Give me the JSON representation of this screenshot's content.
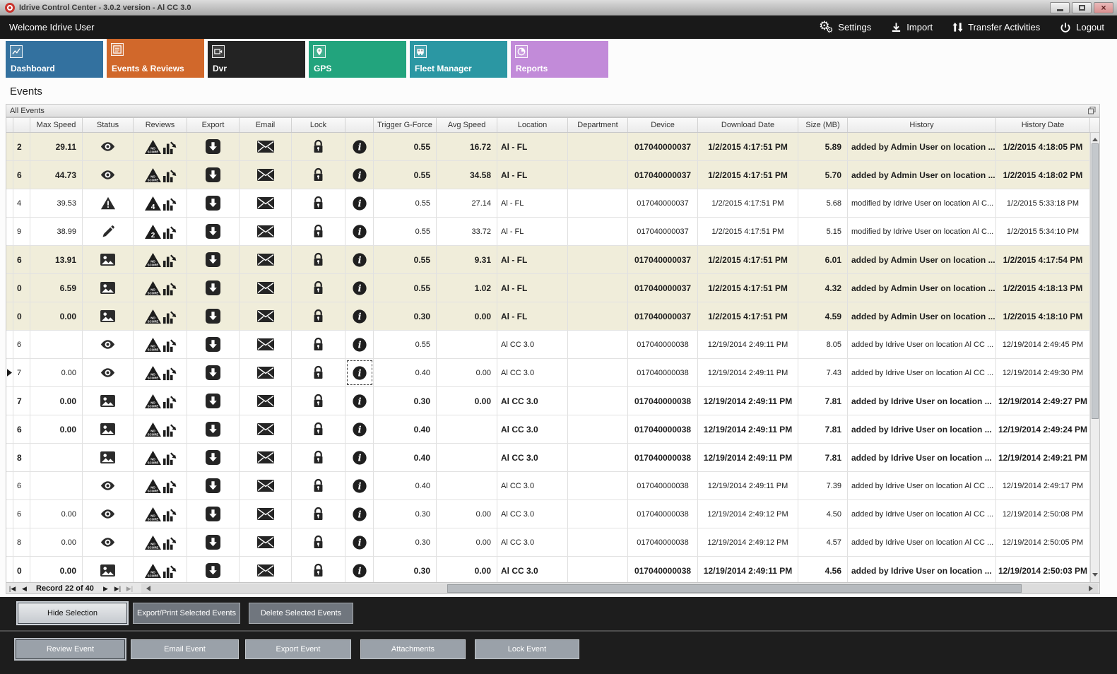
{
  "window": {
    "title": "Idrive Control Center - 3.0.2 version - Al CC 3.0"
  },
  "toolbar": {
    "welcome": "Welcome Idrive User",
    "actions": [
      {
        "label": "Settings",
        "icon": "gear-icon"
      },
      {
        "label": "Import",
        "icon": "download-icon"
      },
      {
        "label": "Transfer Activities",
        "icon": "transfer-arrows-icon"
      },
      {
        "label": "Logout",
        "icon": "power-icon"
      }
    ]
  },
  "icons": {
    "gear": "⚙",
    "close_glyph": "×"
  },
  "tabs": [
    {
      "label": "Dashboard",
      "color": "#33719f",
      "active": false
    },
    {
      "label": "Events & Reviews",
      "color": "#d1682b",
      "active": true
    },
    {
      "label": "Dvr",
      "color": "#232323",
      "active": false
    },
    {
      "label": "GPS",
      "color": "#22a47d",
      "active": false
    },
    {
      "label": "Fleet Manager",
      "color": "#2b97a3",
      "active": false
    },
    {
      "label": "Reports",
      "color": "#c28bd9",
      "active": false
    }
  ],
  "page": {
    "title": "Events",
    "panel_title": "All Events"
  },
  "colors": {
    "highlight_row": "#f0edda",
    "topbar_bg": "#191919"
  },
  "table": {
    "columns": [
      "",
      "",
      "Max Speed",
      "Status",
      "Reviews",
      "Export",
      "Email",
      "Lock",
      "",
      "Trigger G-Force",
      "Avg Speed",
      "Location",
      "Department",
      "Device",
      "Download Date",
      "Size (MB)",
      "History",
      "History Date"
    ],
    "rows": [
      {
        "id": "2",
        "max": "29.11",
        "status": "eye",
        "review": "NO SCORE",
        "trigger": "0.55",
        "avg": "16.72",
        "loc": "Al - FL",
        "dept": "",
        "device": "017040000037",
        "dl": "1/2/2015 4:17:51 PM",
        "size": "5.89",
        "hist": "added by Admin User on location ...",
        "hd": "1/2/2015 4:18:05 PM",
        "hl": true,
        "bold": true
      },
      {
        "id": "6",
        "max": "44.73",
        "status": "eye",
        "review": "NO SCORE",
        "trigger": "0.55",
        "avg": "34.58",
        "loc": "Al - FL",
        "dept": "",
        "device": "017040000037",
        "dl": "1/2/2015 4:17:51 PM",
        "size": "5.70",
        "hist": "added by Admin User on location ...",
        "hd": "1/2/2015 4:18:02 PM",
        "hl": true,
        "bold": true
      },
      {
        "id": "4",
        "max": "39.53",
        "status": "warning",
        "review": "4",
        "trigger": "0.55",
        "avg": "27.14",
        "loc": "Al - FL",
        "dept": "",
        "device": "017040000037",
        "dl": "1/2/2015 4:17:51 PM",
        "size": "5.68",
        "hist": "modified by Idrive User on location Al C...",
        "hd": "1/2/2015 5:33:18 PM"
      },
      {
        "id": "9",
        "max": "38.99",
        "status": "pencil",
        "review": "2",
        "trigger": "0.55",
        "avg": "33.72",
        "loc": "Al - FL",
        "dept": "",
        "device": "017040000037",
        "dl": "1/2/2015 4:17:51 PM",
        "size": "5.15",
        "hist": "modified by Idrive User on location Al C...",
        "hd": "1/2/2015 5:34:10 PM"
      },
      {
        "id": "6",
        "max": "13.91",
        "status": "image",
        "review": "NO SCORE",
        "trigger": "0.55",
        "avg": "9.31",
        "loc": "Al - FL",
        "dept": "",
        "device": "017040000037",
        "dl": "1/2/2015 4:17:51 PM",
        "size": "6.01",
        "hist": "added by Admin User on location ...",
        "hd": "1/2/2015 4:17:54 PM",
        "hl": true,
        "bold": true
      },
      {
        "id": "0",
        "max": "6.59",
        "status": "image",
        "review": "NO SCORE",
        "trigger": "0.55",
        "avg": "1.02",
        "loc": "Al - FL",
        "dept": "",
        "device": "017040000037",
        "dl": "1/2/2015 4:17:51 PM",
        "size": "4.32",
        "hist": "added by Admin User on location ...",
        "hd": "1/2/2015 4:18:13 PM",
        "hl": true,
        "bold": true
      },
      {
        "id": "0",
        "max": "0.00",
        "status": "image",
        "review": "NO SCORE",
        "trigger": "0.30",
        "avg": "0.00",
        "loc": "Al - FL",
        "dept": "",
        "device": "017040000037",
        "dl": "1/2/2015 4:17:51 PM",
        "size": "4.59",
        "hist": "added by Admin User on location ...",
        "hd": "1/2/2015 4:18:10 PM",
        "hl": true,
        "bold": true
      },
      {
        "id": "6",
        "max": "",
        "status": "eye",
        "review": "NO SCORE",
        "trigger": "0.55",
        "avg": "",
        "loc": "Al CC 3.0",
        "dept": "",
        "device": "017040000038",
        "dl": "12/19/2014 2:49:11 PM",
        "size": "8.05",
        "hist": "added by Idrive User on location Al CC ...",
        "hd": "12/19/2014 2:49:45 PM"
      },
      {
        "id": "7",
        "max": "0.00",
        "status": "eye",
        "review": "NO SCORE",
        "trigger": "0.40",
        "avg": "0.00",
        "loc": "Al CC 3.0",
        "dept": "",
        "device": "017040000038",
        "dl": "12/19/2014 2:49:11 PM",
        "size": "7.43",
        "hist": "added by Idrive User on location Al CC ...",
        "hd": "12/19/2014 2:49:30 PM",
        "sel": true
      },
      {
        "id": "7",
        "max": "0.00",
        "status": "image",
        "review": "NO SCORE",
        "trigger": "0.30",
        "avg": "0.00",
        "loc": "Al CC 3.0",
        "dept": "",
        "device": "017040000038",
        "dl": "12/19/2014 2:49:11 PM",
        "size": "7.81",
        "hist": "added by Idrive User on location ...",
        "hd": "12/19/2014 2:49:27 PM",
        "bold": true
      },
      {
        "id": "6",
        "max": "0.00",
        "status": "image",
        "review": "NO SCORE",
        "trigger": "0.40",
        "avg": "",
        "loc": "Al CC 3.0",
        "dept": "",
        "device": "017040000038",
        "dl": "12/19/2014 2:49:11 PM",
        "size": "7.81",
        "hist": "added by Idrive User on location ...",
        "hd": "12/19/2014 2:49:24 PM",
        "bold": true
      },
      {
        "id": "8",
        "max": "",
        "status": "image",
        "review": "NO SCORE",
        "trigger": "0.40",
        "avg": "",
        "loc": "Al CC 3.0",
        "dept": "",
        "device": "017040000038",
        "dl": "12/19/2014 2:49:11 PM",
        "size": "7.81",
        "hist": "added by Idrive User on location ...",
        "hd": "12/19/2014 2:49:21 PM",
        "bold": true
      },
      {
        "id": "6",
        "max": "",
        "status": "eye",
        "review": "NO SCORE",
        "trigger": "0.40",
        "avg": "",
        "loc": "Al CC 3.0",
        "dept": "",
        "device": "017040000038",
        "dl": "12/19/2014 2:49:11 PM",
        "size": "7.39",
        "hist": "added by Idrive User on location Al CC ...",
        "hd": "12/19/2014 2:49:17 PM"
      },
      {
        "id": "6",
        "max": "0.00",
        "status": "eye",
        "review": "NO SCORE",
        "trigger": "0.30",
        "avg": "0.00",
        "loc": "Al CC 3.0",
        "dept": "",
        "device": "017040000038",
        "dl": "12/19/2014 2:49:12 PM",
        "size": "4.50",
        "hist": "added by Idrive User on location Al CC ...",
        "hd": "12/19/2014 2:50:08 PM"
      },
      {
        "id": "8",
        "max": "0.00",
        "status": "eye",
        "review": "NO SCORE",
        "trigger": "0.30",
        "avg": "0.00",
        "loc": "Al CC 3.0",
        "dept": "",
        "device": "017040000038",
        "dl": "12/19/2014 2:49:12 PM",
        "size": "4.57",
        "hist": "added by Idrive User on location Al CC ...",
        "hd": "12/19/2014 2:50:05 PM"
      },
      {
        "id": "0",
        "max": "0.00",
        "status": "image",
        "review": "NO SCORE",
        "trigger": "0.30",
        "avg": "0.00",
        "loc": "Al CC 3.0",
        "dept": "",
        "device": "017040000038",
        "dl": "12/19/2014 2:49:11 PM",
        "size": "4.56",
        "hist": "added by Idrive User on location ...",
        "hd": "12/19/2014 2:50:03 PM",
        "bold": true
      }
    ]
  },
  "pager": {
    "first": "|◀",
    "prev": "◀",
    "label": "Record 22 of 40",
    "next": "▶",
    "last": "▶|",
    "extra": "▶|"
  },
  "buttons": {
    "row1": [
      "Hide Selection",
      "Export/Print Selected Events",
      "Delete Selected Events"
    ],
    "row2": [
      "Review Event",
      "Email Event",
      "Export Event",
      "Attachments",
      "Lock Event"
    ]
  }
}
